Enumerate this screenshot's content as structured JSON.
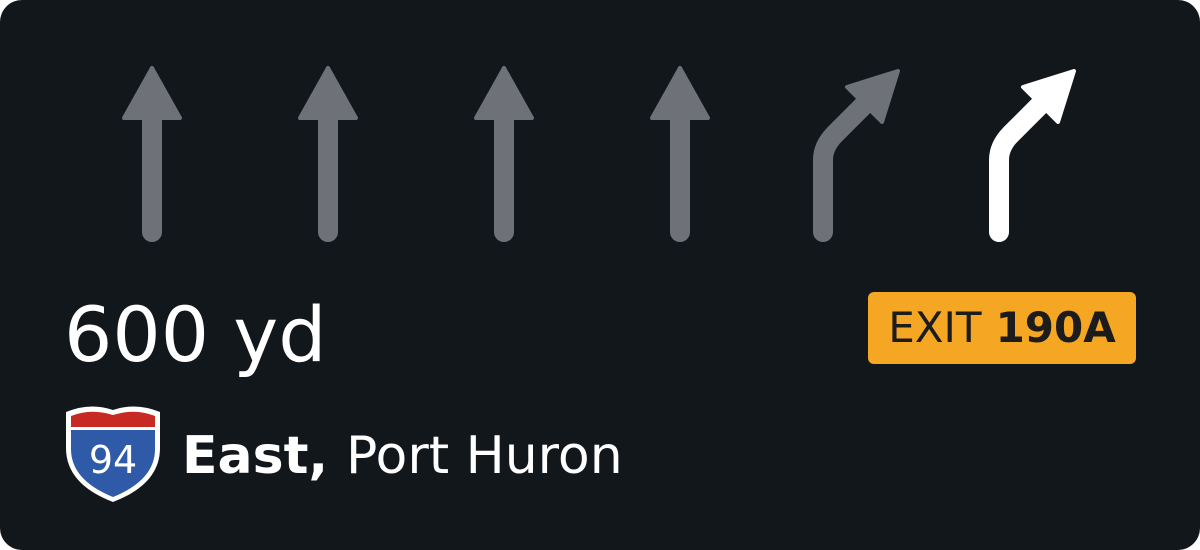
{
  "lanes": [
    {
      "arrow": "straight-arrow-icon",
      "active": false
    },
    {
      "arrow": "straight-arrow-icon",
      "active": false
    },
    {
      "arrow": "straight-arrow-icon",
      "active": false
    },
    {
      "arrow": "straight-arrow-icon",
      "active": false
    },
    {
      "arrow": "slight-right-arrow-icon",
      "active": false
    },
    {
      "arrow": "slight-right-arrow-icon",
      "active": true
    }
  ],
  "colors": {
    "background": "#12171c",
    "inactive_lane": "#6e7278",
    "active_lane": "#ffffff",
    "exit_badge": "#f5a623",
    "shield_red": "#c62a22",
    "shield_blue": "#2f5aa8"
  },
  "distance": "600 yd",
  "exit": {
    "word": "EXIT",
    "number": "190A"
  },
  "route": {
    "shield_number": "94",
    "direction": "East,",
    "destination": "Port Huron"
  }
}
